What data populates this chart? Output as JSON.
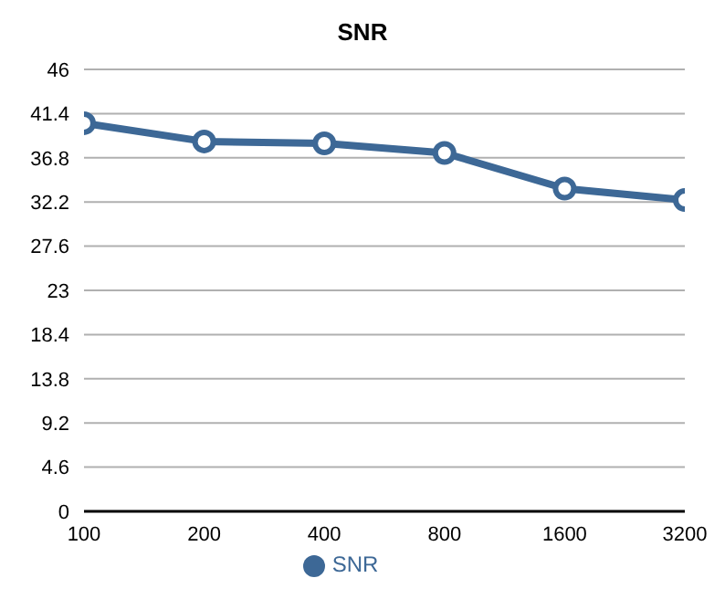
{
  "chart_data": {
    "type": "line",
    "title": "SNR",
    "categories": [
      "100",
      "200",
      "400",
      "800",
      "1600",
      "3200"
    ],
    "series": [
      {
        "name": "SNR",
        "color": "#3d6896",
        "values": [
          40.4,
          38.5,
          38.3,
          37.3,
          33.6,
          32.4
        ]
      }
    ],
    "ylim": [
      0,
      46
    ],
    "yticks": [
      0,
      4.6,
      9.2,
      13.8,
      18.4,
      23,
      27.6,
      32.2,
      36.8,
      41.4,
      46
    ],
    "grid": "y",
    "legend": "bottom",
    "marker": "circle",
    "line_style": "solid"
  }
}
